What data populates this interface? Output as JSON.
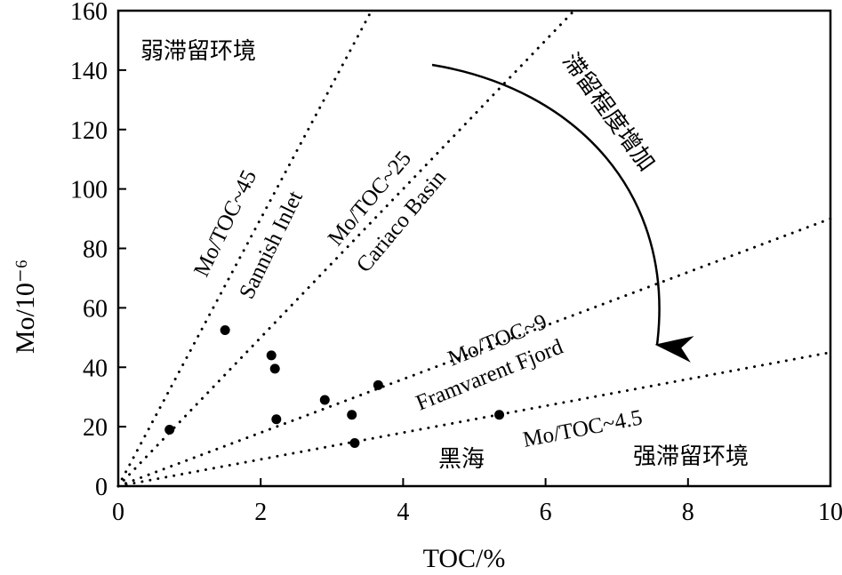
{
  "chart_data": {
    "type": "scatter",
    "xlabel": "TOC/%",
    "ylabel": "Mo/10⁻⁶",
    "xlim": [
      0,
      10
    ],
    "ylim": [
      0,
      160
    ],
    "xticks": [
      0,
      2,
      4,
      6,
      8,
      10
    ],
    "yticks": [
      0,
      20,
      40,
      60,
      80,
      100,
      120,
      140,
      160
    ],
    "grid": false,
    "points": [
      {
        "x": 0.72,
        "y": 19
      },
      {
        "x": 1.5,
        "y": 52.5
      },
      {
        "x": 2.15,
        "y": 44
      },
      {
        "x": 2.2,
        "y": 39.5
      },
      {
        "x": 2.22,
        "y": 22.5
      },
      {
        "x": 2.9,
        "y": 29
      },
      {
        "x": 3.28,
        "y": 24
      },
      {
        "x": 3.32,
        "y": 14.5
      },
      {
        "x": 3.65,
        "y": 34
      },
      {
        "x": 5.35,
        "y": 24
      }
    ],
    "reference_lines": [
      {
        "ratio": 45,
        "label": "Mo/TOC~45",
        "site": "Sannish Inlet"
      },
      {
        "ratio": 25,
        "label": "Mo/TOC~25",
        "site": "Cariaco Basin"
      },
      {
        "ratio": 9,
        "label": "Mo/TOC~9",
        "site": "Framvarent Fjord"
      },
      {
        "ratio": 4.5,
        "label": "Mo/TOC~4.5",
        "site": "黑海"
      }
    ],
    "annotations": {
      "weak": "弱滞留环境",
      "strong": "强滞留环境",
      "arrow": "滞留程度增加"
    }
  }
}
